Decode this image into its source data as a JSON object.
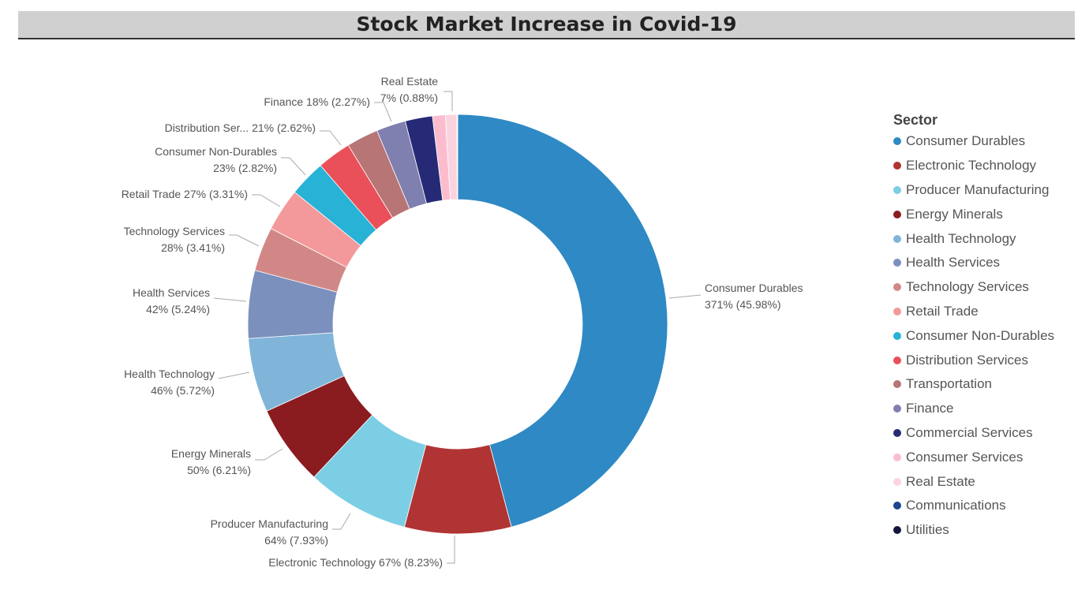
{
  "chart_data": {
    "type": "pie",
    "title": "Stock Market Increase in Covid-19",
    "legend_title": "Sector",
    "legend_position": "right",
    "slices": [
      {
        "name": "Consumer Durables",
        "value": 371,
        "percent": 45.98,
        "color": "#2e89c4",
        "label_line1": "Consumer Durables",
        "label_line2": "371% (45.98%)"
      },
      {
        "name": "Electronic Technology",
        "value": 67,
        "percent": 8.23,
        "color": "#b03434",
        "label_line1": "Electronic Technology 67% (8.23%)",
        "label_line2": ""
      },
      {
        "name": "Producer Manufacturing",
        "value": 64,
        "percent": 7.93,
        "color": "#7ccee4",
        "label_line1": "Producer Manufacturing",
        "label_line2": "64% (7.93%)"
      },
      {
        "name": "Energy Minerals",
        "value": 50,
        "percent": 6.21,
        "color": "#8a1c20",
        "label_line1": "Energy Minerals",
        "label_line2": "50% (6.21%)"
      },
      {
        "name": "Health Technology",
        "value": 46,
        "percent": 5.72,
        "color": "#80b5d9",
        "label_line1": "Health Technology",
        "label_line2": "46% (5.72%)"
      },
      {
        "name": "Health Services",
        "value": 42,
        "percent": 5.24,
        "color": "#7b90bc",
        "label_line1": "Health Services",
        "label_line2": "42% (5.24%)"
      },
      {
        "name": "Technology Services",
        "value": 28,
        "percent": 3.41,
        "color": "#d28787",
        "label_line1": "Technology Services",
        "label_line2": "28% (3.41%)"
      },
      {
        "name": "Retail Trade",
        "value": 27,
        "percent": 3.31,
        "color": "#f4999b",
        "label_line1": "Retail Trade 27% (3.31%)",
        "label_line2": ""
      },
      {
        "name": "Consumer Non-Durables",
        "value": 23,
        "percent": 2.82,
        "color": "#27b2d6",
        "label_line1": "Consumer Non-Durables",
        "label_line2": "23% (2.82%)"
      },
      {
        "name": "Distribution Services",
        "value": 21,
        "percent": 2.62,
        "color": "#ea5059",
        "label_line1": "Distribution Ser... 21% (2.62%)",
        "label_line2": ""
      },
      {
        "name": "Transportation",
        "value": 20,
        "percent": 2.45,
        "color": "#b77576",
        "label_line1": "",
        "label_line2": ""
      },
      {
        "name": "Finance",
        "value": 18,
        "percent": 2.27,
        "color": "#7f7fb0",
        "label_line1": "Finance 18% (2.27%)",
        "label_line2": ""
      },
      {
        "name": "Commercial Services",
        "value": 17,
        "percent": 2.1,
        "color": "#262a76",
        "label_line1": "",
        "label_line2": ""
      },
      {
        "name": "Consumer Services",
        "value": 8,
        "percent": 0.99,
        "color": "#fbbdce",
        "label_line1": "",
        "label_line2": ""
      },
      {
        "name": "Real Estate",
        "value": 7,
        "percent": 0.88,
        "color": "#fbd3de",
        "label_line1": "Real Estate",
        "label_line2": "7% (0.88%)"
      },
      {
        "name": "Communications",
        "value": 0.3,
        "percent": 0.04,
        "color": "#1f4590",
        "label_line1": "",
        "label_line2": ""
      },
      {
        "name": "Utilities",
        "value": 0.2,
        "percent": 0.02,
        "color": "#13163c",
        "label_line1": "",
        "label_line2": ""
      }
    ]
  }
}
